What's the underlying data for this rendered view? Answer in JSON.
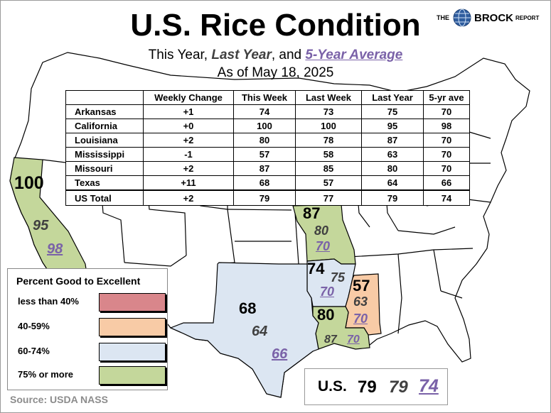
{
  "title": "U.S. Rice Condition",
  "subtitle": {
    "prefix": "This Year, ",
    "last_year": "Last Year",
    "mid": ", and ",
    "five_year": "5-Year Average"
  },
  "date_line": "As of May 18, 2025",
  "logo": {
    "the": "THE",
    "name": "BROCK",
    "report": "REPORT"
  },
  "table": {
    "headers": [
      "",
      "Weekly Change",
      "This Week",
      "Last Week",
      "Last Year",
      "5-yr ave"
    ],
    "rows": [
      [
        "Arkansas",
        "+1",
        "74",
        "73",
        "75",
        "70"
      ],
      [
        "California",
        "+0",
        "100",
        "100",
        "95",
        "98"
      ],
      [
        "Louisiana",
        "+2",
        "80",
        "78",
        "87",
        "70"
      ],
      [
        "Mississippi",
        "-1",
        "57",
        "58",
        "63",
        "70"
      ],
      [
        "Missouri",
        "+2",
        "87",
        "85",
        "80",
        "70"
      ],
      [
        "Texas",
        "+11",
        "68",
        "57",
        "64",
        "66"
      ]
    ],
    "total": [
      "US Total",
      "+2",
      "79",
      "77",
      "79",
      "74"
    ]
  },
  "map_labels": {
    "california": {
      "this_year": "100",
      "last_year": "95",
      "avg": "98"
    },
    "missouri": {
      "this_year": "87",
      "last_year": "80",
      "avg": "70"
    },
    "arkansas": {
      "this_year": "74",
      "last_year": "75",
      "avg": "70"
    },
    "mississippi": {
      "this_year": "57",
      "last_year": "63",
      "avg": "70"
    },
    "louisiana": {
      "this_year": "80",
      "last_year": "87",
      "avg": "70"
    },
    "texas": {
      "this_year": "68",
      "last_year": "64",
      "avg": "66"
    }
  },
  "legend": {
    "title": "Percent Good to Excellent",
    "items": [
      {
        "label": "less than 40%",
        "color": "#d9868b"
      },
      {
        "label": "40-59%",
        "color": "#f8cba6"
      },
      {
        "label": "60-74%",
        "color": "#dce6f2"
      },
      {
        "label": "75% or more",
        "color": "#c4d79b"
      }
    ]
  },
  "us_summary": {
    "label": "U.S.",
    "this_year": "79",
    "last_year": "79",
    "avg": "74"
  },
  "source": "Source: USDA NASS"
}
